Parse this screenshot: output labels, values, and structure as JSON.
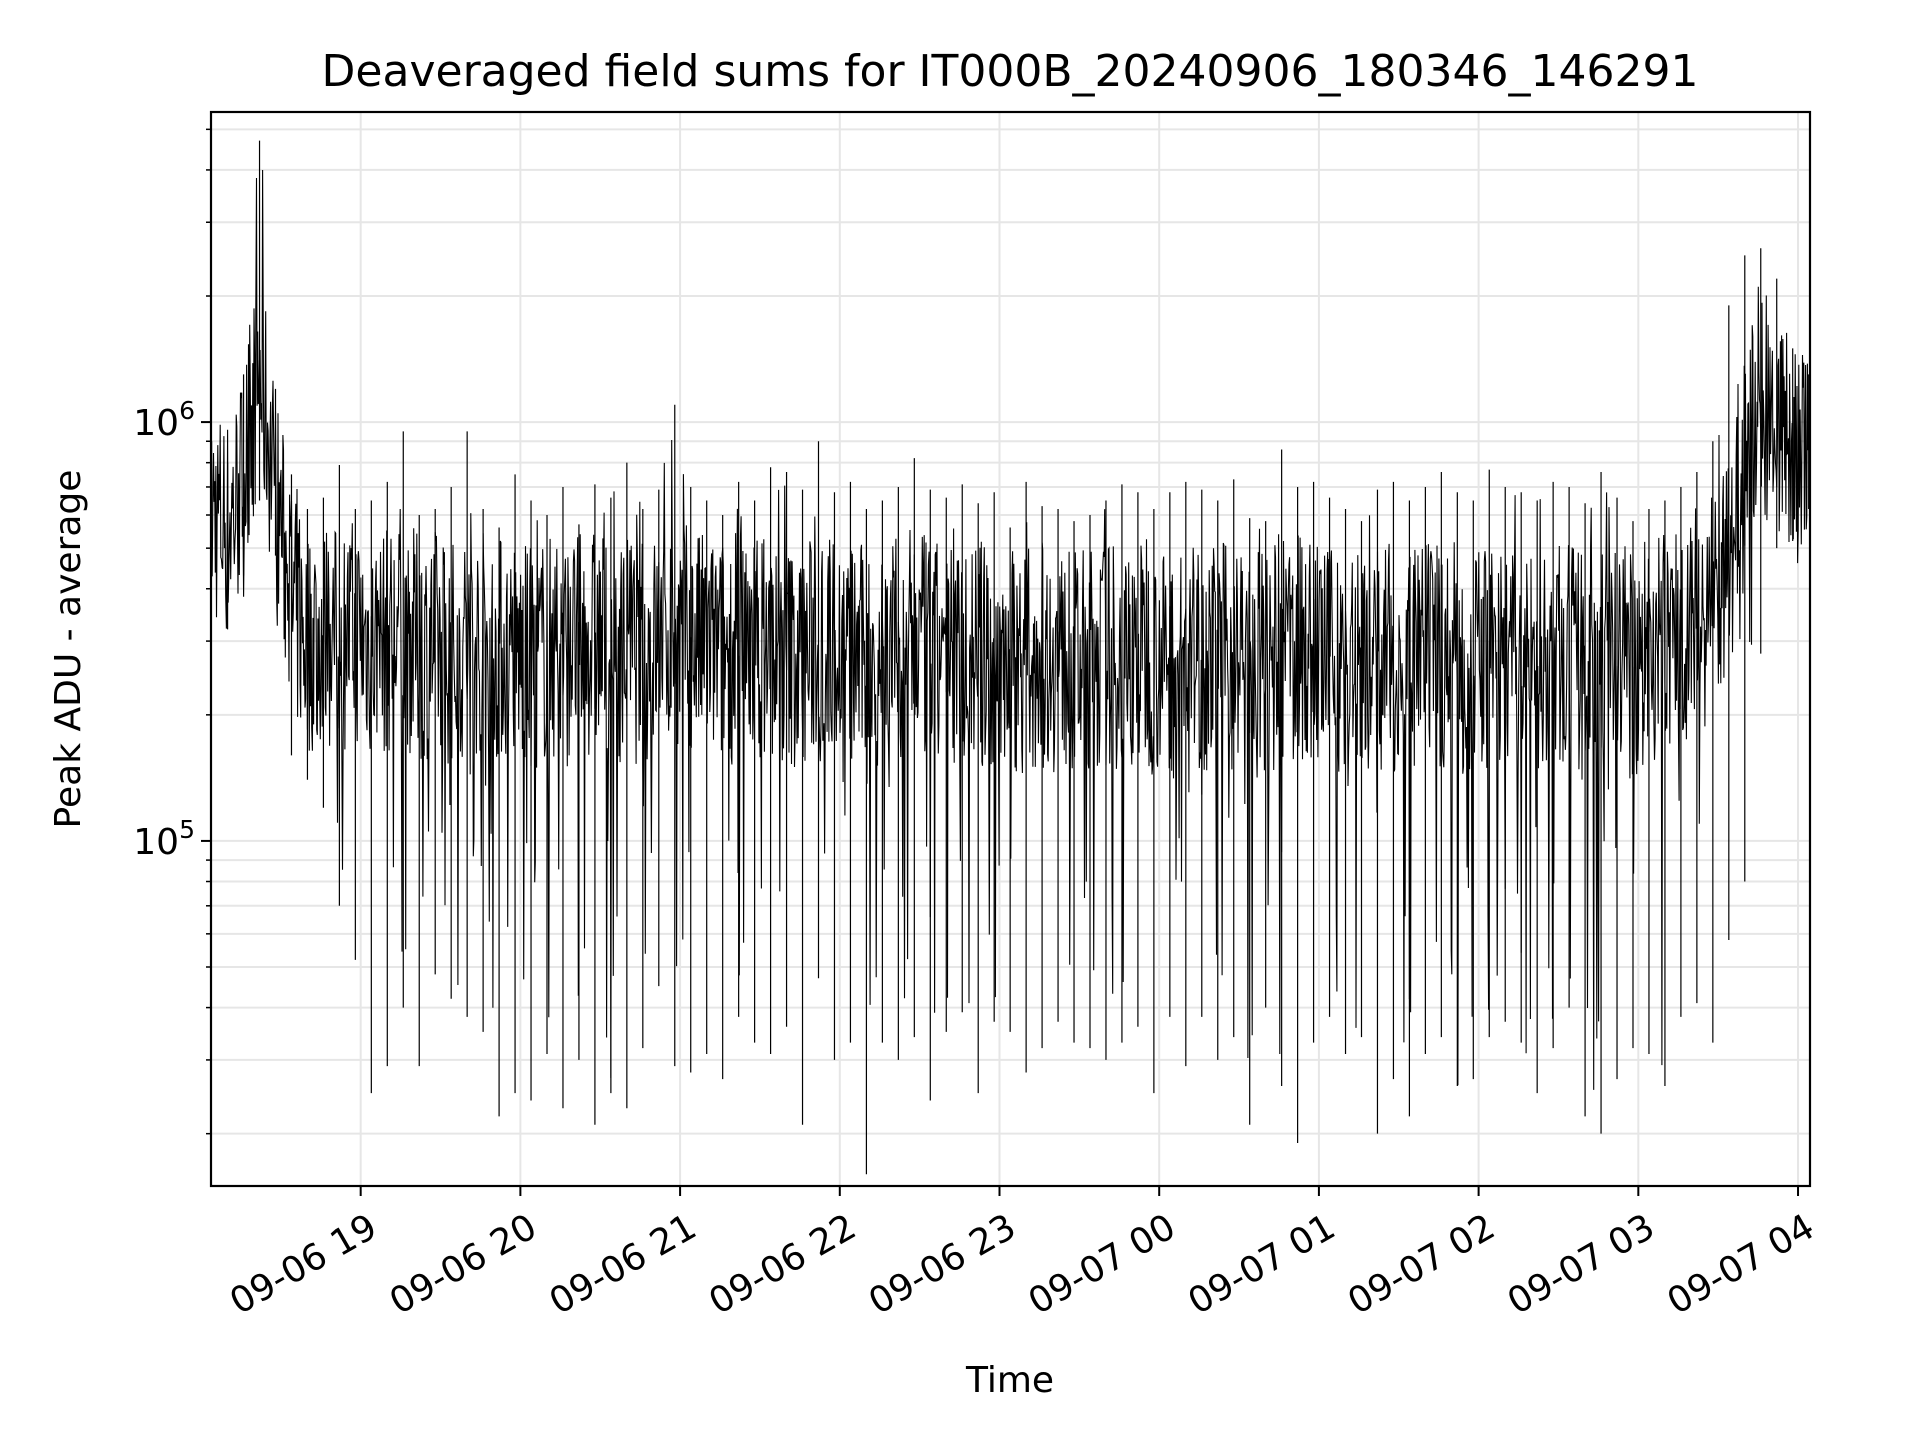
{
  "chart_data": {
    "type": "line",
    "title": "Deaveraged field sums for IT000B_20240906_180346_146291",
    "xlabel": "Time",
    "ylabel": "Peak ADU - average",
    "yscale": "log",
    "grid": true,
    "legend": "none",
    "xlim": [
      "2024-09-06T18:03:46",
      "2024-09-07T04:04:30"
    ],
    "ylim": [
      15000,
      5500000
    ],
    "x_ticks": [
      {
        "label": "09-06 19",
        "value": "2024-09-06T19:00"
      },
      {
        "label": "09-06 20",
        "value": "2024-09-06T20:00"
      },
      {
        "label": "09-06 21",
        "value": "2024-09-06T21:00"
      },
      {
        "label": "09-06 22",
        "value": "2024-09-06T22:00"
      },
      {
        "label": "09-06 23",
        "value": "2024-09-06T23:00"
      },
      {
        "label": "09-07 00",
        "value": "2024-09-07T00:00"
      },
      {
        "label": "09-07 01",
        "value": "2024-09-07T01:00"
      },
      {
        "label": "09-07 02",
        "value": "2024-09-07T02:00"
      },
      {
        "label": "09-07 03",
        "value": "2024-09-07T03:00"
      },
      {
        "label": "09-07 04",
        "value": "2024-09-07T04:00"
      }
    ],
    "y_ticks": [
      {
        "base": "10",
        "exp": "5",
        "value": 100000
      },
      {
        "base": "10",
        "exp": "6",
        "value": 1000000
      }
    ],
    "series": [
      {
        "color": "#000000",
        "x": [
          "2024-09-06T18:04",
          "2024-09-06T18:10",
          "2024-09-06T18:16",
          "2024-09-06T18:22",
          "2024-09-06T18:28",
          "2024-09-06T18:34",
          "2024-09-06T18:40",
          "2024-09-06T18:46",
          "2024-09-06T18:52",
          "2024-09-06T18:58",
          "2024-09-06T19:04",
          "2024-09-06T19:10",
          "2024-09-06T19:16",
          "2024-09-06T19:22",
          "2024-09-06T19:28",
          "2024-09-06T19:34",
          "2024-09-06T19:40",
          "2024-09-06T19:46",
          "2024-09-06T19:52",
          "2024-09-06T19:58",
          "2024-09-06T20:04",
          "2024-09-06T20:10",
          "2024-09-06T20:16",
          "2024-09-06T20:22",
          "2024-09-06T20:28",
          "2024-09-06T20:34",
          "2024-09-06T20:40",
          "2024-09-06T20:46",
          "2024-09-06T20:52",
          "2024-09-06T20:58",
          "2024-09-06T21:04",
          "2024-09-06T21:10",
          "2024-09-06T21:16",
          "2024-09-06T21:22",
          "2024-09-06T21:28",
          "2024-09-06T21:34",
          "2024-09-06T21:40",
          "2024-09-06T21:46",
          "2024-09-06T21:52",
          "2024-09-06T21:58",
          "2024-09-06T22:04",
          "2024-09-06T22:10",
          "2024-09-06T22:16",
          "2024-09-06T22:22",
          "2024-09-06T22:28",
          "2024-09-06T22:34",
          "2024-09-06T22:40",
          "2024-09-06T22:46",
          "2024-09-06T22:52",
          "2024-09-06T22:58",
          "2024-09-06T23:04",
          "2024-09-06T23:10",
          "2024-09-06T23:16",
          "2024-09-06T23:22",
          "2024-09-06T23:28",
          "2024-09-06T23:34",
          "2024-09-06T23:40",
          "2024-09-06T23:46",
          "2024-09-06T23:52",
          "2024-09-06T23:58",
          "2024-09-07T00:04",
          "2024-09-07T00:10",
          "2024-09-07T00:16",
          "2024-09-07T00:22",
          "2024-09-07T00:28",
          "2024-09-07T00:34",
          "2024-09-07T00:40",
          "2024-09-07T00:46",
          "2024-09-07T00:52",
          "2024-09-07T00:58",
          "2024-09-07T01:04",
          "2024-09-07T01:10",
          "2024-09-07T01:16",
          "2024-09-07T01:22",
          "2024-09-07T01:28",
          "2024-09-07T01:34",
          "2024-09-07T01:40",
          "2024-09-07T01:46",
          "2024-09-07T01:52",
          "2024-09-07T01:58",
          "2024-09-07T02:04",
          "2024-09-07T02:10",
          "2024-09-07T02:16",
          "2024-09-07T02:22",
          "2024-09-07T02:28",
          "2024-09-07T02:34",
          "2024-09-07T02:40",
          "2024-09-07T02:46",
          "2024-09-07T02:52",
          "2024-09-07T02:58",
          "2024-09-07T03:04",
          "2024-09-07T03:10",
          "2024-09-07T03:16",
          "2024-09-07T03:22",
          "2024-09-07T03:28",
          "2024-09-07T03:34",
          "2024-09-07T03:40",
          "2024-09-07T03:46",
          "2024-09-07T03:52",
          "2024-09-07T03:58",
          "2024-09-07T04:04"
        ],
        "min": [
          480000,
          320000,
          430000,
          650000,
          480000,
          160000,
          140000,
          120000,
          70000,
          52000,
          25000,
          29000,
          40000,
          29000,
          48000,
          42000,
          38000,
          35000,
          22000,
          25000,
          24000,
          31000,
          23000,
          30000,
          21000,
          25000,
          23000,
          32000,
          45000,
          29000,
          28000,
          31000,
          27000,
          38000,
          33000,
          31000,
          36000,
          21000,
          47000,
          30000,
          33000,
          16000,
          33000,
          30000,
          34000,
          24000,
          35000,
          39000,
          25000,
          37000,
          35000,
          28000,
          32000,
          37000,
          33000,
          32000,
          30000,
          33000,
          36000,
          25000,
          38000,
          29000,
          38000,
          30000,
          34000,
          21000,
          40000,
          26000,
          19000,
          33000,
          38000,
          31000,
          34000,
          20000,
          27000,
          22000,
          31000,
          34000,
          26000,
          27000,
          34000,
          37000,
          33000,
          25000,
          32000,
          40000,
          22000,
          20000,
          27000,
          32000,
          31000,
          26000,
          38000,
          41000,
          33000,
          58000,
          80000,
          280000,
          500000,
          520000,
          620000
        ],
        "max": [
          900000,
          800000,
          1300000,
          4700000,
          1200000,
          750000,
          620000,
          660000,
          790000,
          620000,
          650000,
          720000,
          950000,
          600000,
          620000,
          700000,
          950000,
          620000,
          560000,
          750000,
          650000,
          600000,
          700000,
          570000,
          710000,
          660000,
          800000,
          620000,
          690000,
          1100000,
          700000,
          650000,
          600000,
          720000,
          650000,
          780000,
          760000,
          690000,
          900000,
          680000,
          720000,
          620000,
          650000,
          700000,
          820000,
          690000,
          660000,
          710000,
          640000,
          680000,
          560000,
          720000,
          630000,
          620000,
          580000,
          600000,
          650000,
          710000,
          680000,
          620000,
          680000,
          720000,
          690000,
          650000,
          730000,
          590000,
          580000,
          860000,
          700000,
          720000,
          660000,
          620000,
          580000,
          690000,
          720000,
          650000,
          700000,
          760000,
          680000,
          650000,
          770000,
          700000,
          680000,
          650000,
          720000,
          700000,
          640000,
          760000,
          660000,
          580000,
          620000,
          650000,
          700000,
          760000,
          900000,
          1900000,
          2500000,
          2600000,
          2200000,
          1500000,
          1300000
        ],
        "typical": [
          620000,
          560000,
          720000,
          1300000,
          640000,
          360000,
          300000,
          310000,
          300000,
          320000,
          290000,
          300000,
          310000,
          290000,
          300000,
          280000,
          290000,
          300000,
          290000,
          280000,
          270000,
          290000,
          280000,
          290000,
          300000,
          290000,
          290000,
          280000,
          300000,
          320000,
          300000,
          290000,
          280000,
          290000,
          300000,
          290000,
          280000,
          270000,
          300000,
          290000,
          280000,
          270000,
          290000,
          280000,
          300000,
          280000,
          270000,
          290000,
          280000,
          270000,
          280000,
          270000,
          280000,
          270000,
          260000,
          270000,
          280000,
          270000,
          280000,
          270000,
          260000,
          270000,
          280000,
          270000,
          280000,
          270000,
          260000,
          280000,
          290000,
          280000,
          270000,
          260000,
          270000,
          280000,
          270000,
          260000,
          270000,
          280000,
          270000,
          260000,
          280000,
          270000,
          260000,
          270000,
          280000,
          270000,
          260000,
          280000,
          270000,
          260000,
          290000,
          300000,
          320000,
          340000,
          360000,
          420000,
          900000,
          1050000,
          1000000,
          850000,
          800000
        ]
      }
    ]
  }
}
